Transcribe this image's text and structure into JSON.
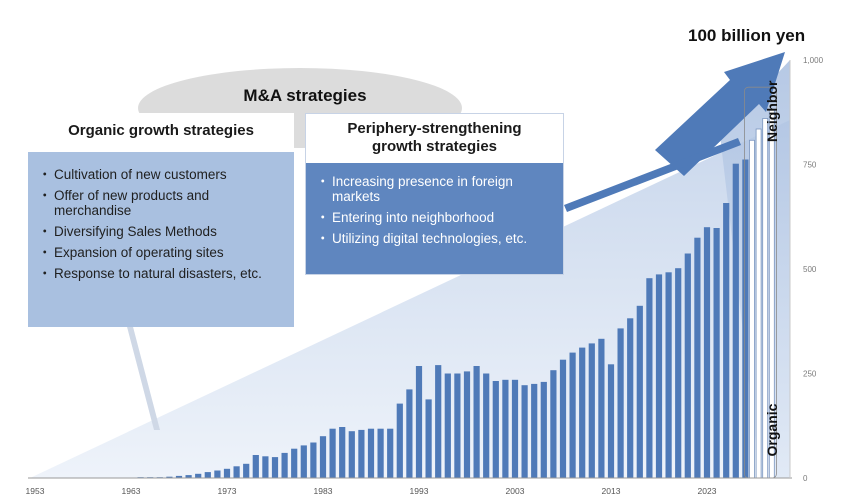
{
  "chart_data": {
    "type": "bar",
    "title": "",
    "xlabel": "",
    "ylabel": "",
    "ylim": [
      0,
      1000
    ],
    "y_ticks": [
      "0",
      "250",
      "500",
      "750",
      "1,000"
    ],
    "x_ticks": [
      "1953",
      "1963",
      "1973",
      "1983",
      "1993",
      "2003",
      "2013",
      "2023"
    ],
    "x_start": 1953,
    "values": [
      0,
      0,
      0,
      0,
      0,
      0,
      0,
      0,
      0,
      0,
      0,
      1,
      1,
      2,
      3,
      5,
      7,
      10,
      14,
      18,
      22,
      28,
      34,
      55,
      52,
      50,
      60,
      70,
      78,
      85,
      100,
      118,
      122,
      112,
      115,
      118,
      118,
      118,
      178,
      212,
      268,
      188,
      270,
      250,
      250,
      255,
      268,
      250,
      232,
      235,
      235,
      222,
      225,
      230,
      258,
      283,
      300,
      312,
      322,
      333,
      272,
      358,
      382,
      412,
      478,
      487,
      492,
      502,
      537,
      575,
      600,
      598,
      658,
      752,
      762
    ],
    "projection_bars": [
      808,
      835,
      860,
      880
    ],
    "color": "#4f7ab8",
    "annotations": {
      "top_label": "100 billion yen",
      "ma_label": "M&A strategies",
      "neighbor_label": "Neighbor",
      "organic_label": "Organic"
    },
    "organic": {
      "title": "Organic growth strategies",
      "items": [
        "Cultivation of new customers",
        "Offer of new products and merchandise",
        "Diversifying Sales Methods",
        "Expansion of operating sites",
        "Response to natural disasters, etc."
      ]
    },
    "periphery": {
      "title": "Periphery-strengthening growth strategies",
      "items": [
        "Increasing presence in foreign markets",
        "Entering into neighborhood",
        "Utilizing digital technologies, etc."
      ]
    }
  }
}
